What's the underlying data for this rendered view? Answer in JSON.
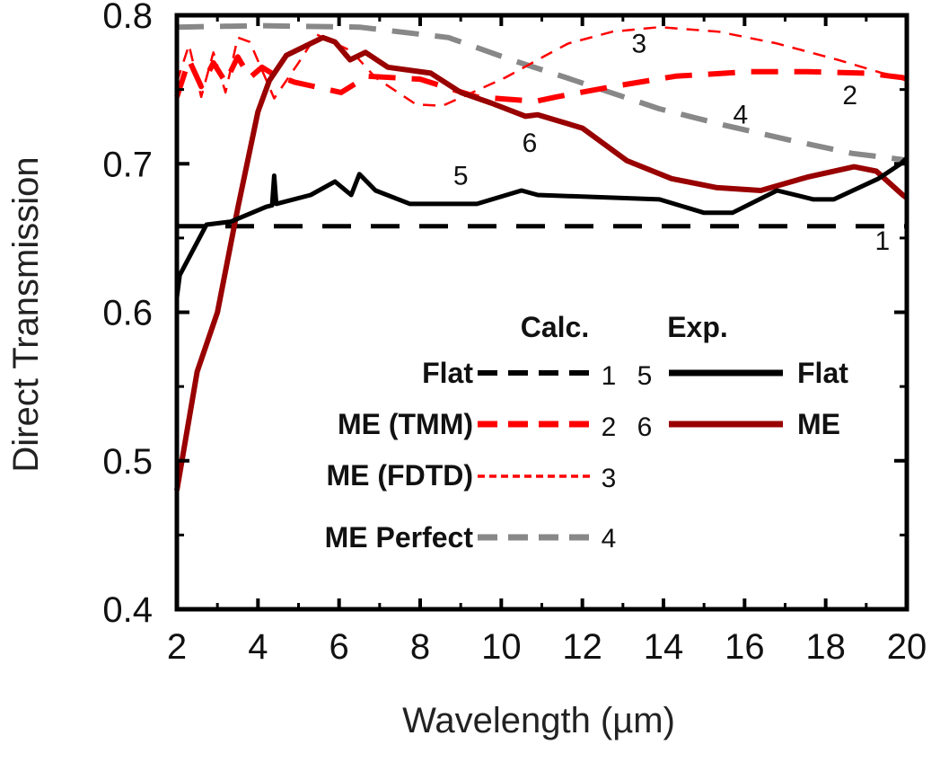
{
  "chart_data": {
    "type": "line",
    "xlabel": "Wavelength (µm)",
    "ylabel": "Direct Transmission",
    "xlim": [
      2,
      20
    ],
    "ylim": [
      0.4,
      0.8
    ],
    "xticks": [
      "2",
      "4",
      "6",
      "8",
      "10",
      "12",
      "14",
      "16",
      "18",
      "20"
    ],
    "yticks": [
      "0.4",
      "0.5",
      "0.6",
      "0.7",
      "0.8"
    ],
    "grid": false,
    "legend": {
      "placement": "center",
      "headers": {
        "calc": "Calc.",
        "exp": "Exp."
      },
      "calc_labels": [
        "Flat",
        "ME (TMM)",
        "ME (FDTD)",
        "ME Perfect"
      ],
      "exp_labels": [
        "Flat",
        "ME"
      ]
    },
    "series": [
      {
        "name": "Flat",
        "group": "Calc.",
        "id": "1",
        "color": "#000000",
        "style": "dashed",
        "x": [
          2,
          20
        ],
        "y": [
          0.658,
          0.658
        ]
      },
      {
        "name": "ME (TMM)",
        "group": "Calc.",
        "id": "2",
        "color": "#ff0000",
        "style": "dashed",
        "x": [
          2,
          2.3,
          2.6,
          2.9,
          3.2,
          3.5,
          3.8,
          4.1,
          4.4,
          4.9,
          6.05,
          6.7,
          8.0,
          9.4,
          10.85,
          11.35,
          12.75,
          14.3,
          16.1,
          17.55,
          19.0,
          19.9,
          20
        ],
        "y": [
          0.745,
          0.77,
          0.752,
          0.768,
          0.755,
          0.772,
          0.758,
          0.765,
          0.76,
          0.755,
          0.748,
          0.759,
          0.757,
          0.745,
          0.742,
          0.745,
          0.752,
          0.759,
          0.762,
          0.762,
          0.761,
          0.758,
          0.757
        ]
      },
      {
        "name": "ME (FDTD)",
        "group": "Calc.",
        "id": "3",
        "color": "#ff0000",
        "style": "dotted",
        "x": [
          2,
          2.3,
          2.6,
          2.9,
          3.2,
          3.5,
          3.8,
          4.4,
          5.0,
          5.45,
          6.3,
          6.9,
          7.9,
          8.55,
          10.1,
          11.1,
          11.65,
          12.75,
          13.9,
          15.35,
          16.8,
          18.3,
          19.4,
          19.9,
          20
        ],
        "y": [
          0.755,
          0.78,
          0.745,
          0.775,
          0.748,
          0.785,
          0.782,
          0.744,
          0.768,
          0.787,
          0.776,
          0.758,
          0.74,
          0.739,
          0.758,
          0.773,
          0.781,
          0.789,
          0.792,
          0.789,
          0.781,
          0.77,
          0.761,
          0.758,
          0.757
        ]
      },
      {
        "name": "ME Perfect",
        "group": "Calc.",
        "id": "4",
        "color": "#888888",
        "style": "dashed",
        "x": [
          2,
          4,
          6.5,
          8.7,
          10.25,
          11.6,
          13.9,
          15.5,
          17.1,
          18.65,
          19.85,
          20
        ],
        "y": [
          0.792,
          0.793,
          0.792,
          0.785,
          0.77,
          0.758,
          0.737,
          0.726,
          0.716,
          0.707,
          0.703,
          0.702
        ]
      },
      {
        "name": "Flat",
        "group": "Exp.",
        "id": "5",
        "color": "#000000",
        "style": "solid",
        "x": [
          2,
          2.07,
          2.73,
          3.33,
          4.2,
          4.35,
          4.4,
          4.45,
          5.3,
          5.9,
          6.3,
          6.5,
          6.9,
          7.75,
          9.4,
          10.5,
          10.9,
          13.9,
          15.0,
          15.7,
          16.8,
          17.7,
          18.2,
          19.3,
          19.85,
          20
        ],
        "y": [
          0.61,
          0.625,
          0.659,
          0.661,
          0.671,
          0.672,
          0.692,
          0.673,
          0.679,
          0.688,
          0.679,
          0.693,
          0.682,
          0.673,
          0.673,
          0.682,
          0.679,
          0.676,
          0.667,
          0.667,
          0.682,
          0.676,
          0.676,
          0.69,
          0.7,
          0.704
        ]
      },
      {
        "name": "ME",
        "group": "Exp.",
        "id": "6",
        "color": "#990000",
        "style": "solid",
        "x": [
          2,
          2.5,
          3,
          3.5,
          4,
          4.28,
          4.7,
          5.6,
          5.9,
          6.27,
          6.65,
          7.2,
          8.26,
          9.0,
          9.74,
          10.6,
          10.9,
          12.0,
          13.1,
          14.2,
          15.3,
          16.4,
          17.55,
          18.7,
          19.25,
          19.9,
          20
        ],
        "y": [
          0.48,
          0.56,
          0.6,
          0.67,
          0.735,
          0.756,
          0.773,
          0.785,
          0.782,
          0.77,
          0.775,
          0.765,
          0.761,
          0.748,
          0.741,
          0.732,
          0.733,
          0.724,
          0.702,
          0.69,
          0.684,
          0.682,
          0.691,
          0.698,
          0.695,
          0.679,
          0.677
        ]
      }
    ],
    "annotations": [
      {
        "text": "1",
        "x": 19.4,
        "y": 0.642
      },
      {
        "text": "2",
        "x": 18.6,
        "y": 0.74
      },
      {
        "text": "3",
        "x": 13.4,
        "y": 0.775
      },
      {
        "text": "4",
        "x": 15.9,
        "y": 0.727
      },
      {
        "text": "5",
        "x": 9.0,
        "y": 0.686
      },
      {
        "text": "6",
        "x": 10.7,
        "y": 0.708
      }
    ]
  }
}
